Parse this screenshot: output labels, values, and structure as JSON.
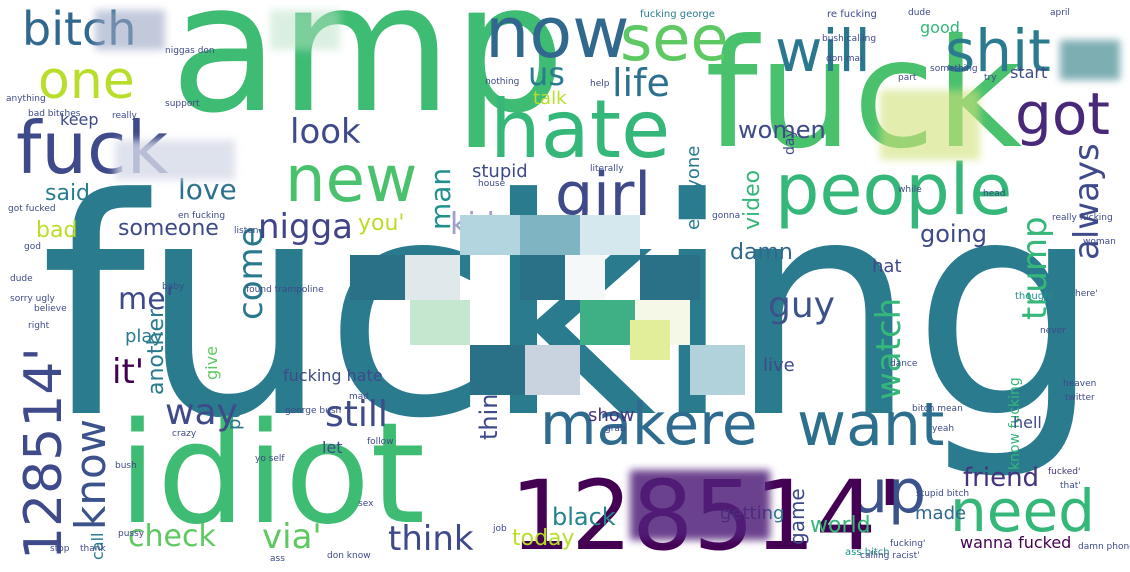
{
  "words": [
    {
      "t": "fucking",
      "c": "#2a7b8e"
    },
    {
      "t": "amp",
      "c": "#3fbc73"
    },
    {
      "t": "fuck",
      "c": "#4ac16d"
    },
    {
      "t": "idiot",
      "c": "#3fbc73"
    },
    {
      "t": "hate",
      "c": "#35b779"
    },
    {
      "t": "new",
      "c": "#4ac16d"
    },
    {
      "t": "people",
      "c": "#35b779"
    },
    {
      "t": "want",
      "c": "#2d708e"
    },
    {
      "t": "makere",
      "c": "#2f6b8e"
    },
    {
      "t": "up",
      "c": "#3b528b"
    },
    {
      "t": "need",
      "c": "#35b779"
    },
    {
      "t": "now",
      "c": "#31688e"
    },
    {
      "t": "see",
      "c": "#5ec962"
    },
    {
      "t": "will",
      "c": "#2a788e"
    },
    {
      "t": "shit",
      "c": "#2a7b8e"
    },
    {
      "t": "one",
      "c": "#b8de29"
    },
    {
      "t": "girl",
      "c": "#3e4a89"
    },
    {
      "t": "got",
      "c": "#482878"
    },
    {
      "t": "bitch",
      "c": "#31688e"
    },
    {
      "t": "fuck",
      "c": "#3e4a89"
    },
    {
      "t": "128514'",
      "c": "#3e4a89"
    },
    {
      "t": "know",
      "c": "#3b528b"
    },
    {
      "t": "life",
      "c": "#2d708e"
    },
    {
      "t": "us",
      "c": "#2a7b8e"
    },
    {
      "t": "look",
      "c": "#3e4a89"
    },
    {
      "t": "nigga",
      "c": "#414487"
    },
    {
      "t": "love",
      "c": "#2d708e"
    },
    {
      "t": "trump",
      "c": "#35b779"
    },
    {
      "t": "always",
      "c": "#3e4a89"
    },
    {
      "t": "watch",
      "c": "#35b779"
    },
    {
      "t": "guy",
      "c": "#3b528b"
    },
    {
      "t": "come",
      "c": "#2a788e"
    },
    {
      "t": "still",
      "c": "#3e4a89"
    },
    {
      "t": "way",
      "c": "#3e4a89"
    },
    {
      "t": "check",
      "c": "#5ec962"
    },
    {
      "t": "via'",
      "c": "#5ec962"
    },
    {
      "t": "think",
      "c": "#3e4a89"
    },
    {
      "t": "friend",
      "c": "#46337e"
    },
    {
      "t": "me'",
      "c": "#3e4a89"
    },
    {
      "t": "it'",
      "c": "#440154"
    },
    {
      "t": "man",
      "c": "#21918c"
    },
    {
      "t": "women",
      "c": "#3e4a89"
    },
    {
      "t": "video",
      "c": "#35b779"
    },
    {
      "t": "someone",
      "c": "#3e4a89"
    },
    {
      "t": "going",
      "c": "#3e4a89"
    },
    {
      "t": "damn",
      "c": "#31688e"
    },
    {
      "t": "black",
      "c": "#26828e"
    },
    {
      "t": "today",
      "c": "#b8de29"
    },
    {
      "t": "thing",
      "c": "#3e4a89"
    },
    {
      "t": "said",
      "c": "#2a7b8e"
    },
    {
      "t": "bad",
      "c": "#b8de29"
    },
    {
      "t": "play",
      "c": "#2a7b8e"
    },
    {
      "t": "stupid",
      "c": "#3e4a89"
    },
    {
      "t": "show",
      "c": "#46337e"
    },
    {
      "t": "talk",
      "c": "#b8de29"
    },
    {
      "t": "keep",
      "c": "#3e4a89"
    },
    {
      "t": "everyone",
      "c": "#2a7b8e"
    },
    {
      "t": "game",
      "c": "#3e4a89"
    },
    {
      "t": "world",
      "c": "#35b779"
    },
    {
      "t": "getting",
      "c": "#2a7b8e"
    },
    {
      "t": "made",
      "c": "#31688e"
    },
    {
      "t": "wanna fucked",
      "c": "#440154"
    },
    {
      "t": "hell",
      "c": "#3e4a89"
    },
    {
      "t": "live",
      "c": "#3e4a89"
    },
    {
      "t": "thought",
      "c": "#21918c"
    },
    {
      "t": "start",
      "c": "#3e4a89"
    },
    {
      "t": "good",
      "c": "#35b779"
    },
    {
      "t": "another",
      "c": "#2a7b8e"
    },
    {
      "t": "fucking hate",
      "c": "#3e4a89"
    },
    {
      "t": "george bush",
      "c": "#3e4a89"
    },
    {
      "t": "give",
      "c": "#5ec962"
    },
    {
      "t": "put",
      "c": "#2a788e"
    },
    {
      "t": "let",
      "c": "#3e4a89"
    },
    {
      "t": "call",
      "c": "#2a788e"
    },
    {
      "t": "hat",
      "c": "#3e4a89"
    },
    {
      "t": "you'",
      "c": "#b8de29"
    },
    {
      "t": "day",
      "c": "#a0a0c8"
    },
    {
      "t": "kid",
      "c": "#3e4a89"
    },
    {
      "t": "know fucking",
      "c": "#35b779"
    },
    {
      "t": "fucked'",
      "c": "#46337e"
    },
    {
      "t": "ass bitch",
      "c": "#21918c"
    },
    {
      "t": "sex",
      "c": "#3e4a89"
    },
    {
      "t": "fucking george",
      "c": "#2a7b8e"
    },
    {
      "t": "re fucking",
      "c": "#3e4a89"
    },
    {
      "t": "bush calling",
      "c": "#3e4a89"
    },
    {
      "t": "niggas don",
      "c": "#3e4a89"
    },
    {
      "t": "don mai",
      "c": "#3e4a89"
    },
    {
      "t": "april",
      "c": "#3e4a89"
    },
    {
      "t": "dude",
      "c": "#3e4a89"
    },
    {
      "t": "something",
      "c": "#3e4a89"
    },
    {
      "t": "part",
      "c": "#3e4a89"
    },
    {
      "t": "try",
      "c": "#3e4a89"
    },
    {
      "t": "nothing",
      "c": "#3e4a89"
    },
    {
      "t": "support",
      "c": "#3e4a89"
    },
    {
      "t": "help",
      "c": "#3e4a89"
    },
    {
      "t": "really",
      "c": "#3e4a89"
    },
    {
      "t": "literally",
      "c": "#3e4a89"
    },
    {
      "t": "house",
      "c": "#3e4a89"
    },
    {
      "t": "bad bitches",
      "c": "#3e4a89"
    },
    {
      "t": "anything",
      "c": "#3e4a89"
    },
    {
      "t": "god",
      "c": "#3e4a89"
    },
    {
      "t": "got fucked",
      "c": "#3e4a89"
    },
    {
      "t": "really fucking",
      "c": "#3e4a89"
    },
    {
      "t": "baby",
      "c": "#3e4a89"
    },
    {
      "t": "believe",
      "c": "#3e4a89"
    },
    {
      "t": "sorry ugly",
      "c": "#3e4a89"
    },
    {
      "t": "right",
      "c": "#3e4a89"
    },
    {
      "t": "dude",
      "c": "#3e4a89"
    },
    {
      "t": "crazy",
      "c": "#3e4a89"
    },
    {
      "t": "twitter",
      "c": "#3e4a89"
    },
    {
      "t": "heaven",
      "c": "#3e4a89"
    },
    {
      "t": "bitch mean",
      "c": "#3e4a89"
    },
    {
      "t": "stupid bitch",
      "c": "#3e4a89"
    },
    {
      "t": "that'",
      "c": "#3e4a89"
    },
    {
      "t": "gonna",
      "c": "#3e4a89"
    },
    {
      "t": "while",
      "c": "#3e4a89"
    },
    {
      "t": "head",
      "c": "#3e4a89"
    },
    {
      "t": "calling racist'",
      "c": "#3e4a89"
    },
    {
      "t": "damn phone'",
      "c": "#3e4a89"
    },
    {
      "t": "don know",
      "c": "#3e4a89"
    },
    {
      "t": "stop",
      "c": "#3e4a89"
    },
    {
      "t": "thank",
      "c": "#3e4a89"
    },
    {
      "t": "pussy",
      "c": "#3e4a89"
    },
    {
      "t": "ass",
      "c": "#3e4a89"
    },
    {
      "t": "fucking'",
      "c": "#3e4a89"
    },
    {
      "t": "job",
      "c": "#3e4a89"
    },
    {
      "t": "grab",
      "c": "#3e4a89"
    },
    {
      "t": "bush",
      "c": "#3e4a89"
    },
    {
      "t": "follow",
      "c": "#3e4a89"
    },
    {
      "t": "never",
      "c": "#3e4a89"
    },
    {
      "t": "yeah",
      "c": "#3e4a89"
    },
    {
      "t": "dance",
      "c": "#3e4a89"
    },
    {
      "t": "mad",
      "c": "#3e4a89"
    },
    {
      "t": "found trampoline",
      "c": "#3e4a89"
    },
    {
      "t": "en fucking",
      "c": "#3e4a89"
    },
    {
      "t": "listen",
      "c": "#3e4a89"
    },
    {
      "t": "yo self",
      "c": "#3e4a89"
    },
    {
      "t": "woman",
      "c": "#3e4a89"
    },
    {
      "t": "here'",
      "c": "#3e4a89"
    }
  ]
}
